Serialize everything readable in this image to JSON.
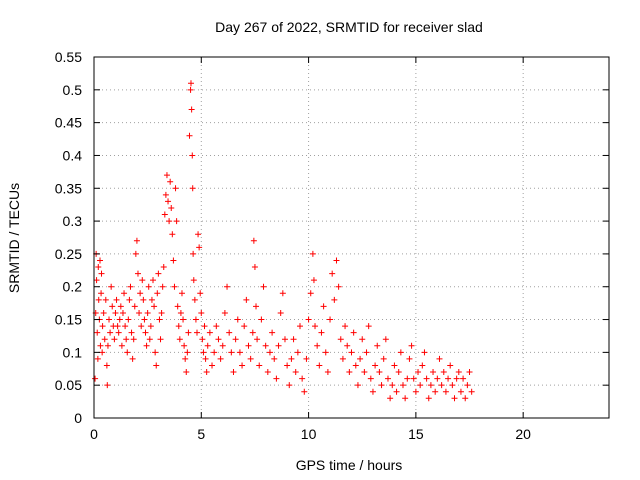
{
  "chart_data": {
    "type": "scatter",
    "title": "Day 267 of 2022, SRMTID for receiver slad",
    "xlabel": "GPS time / hours",
    "ylabel": "SRMTID / TECUs",
    "xlim": [
      0,
      24
    ],
    "ylim": [
      0,
      0.55
    ],
    "xticks": [
      0,
      5,
      10,
      15,
      20
    ],
    "yticks": [
      0,
      0.05,
      0.1,
      0.15,
      0.2,
      0.25,
      0.3,
      0.35,
      0.4,
      0.45,
      0.5,
      0.55
    ],
    "grid": true,
    "marker": "+",
    "color": "#ff0000",
    "points": [
      [
        0.05,
        0.06
      ],
      [
        0.08,
        0.16
      ],
      [
        0.1,
        0.25
      ],
      [
        0.12,
        0.21
      ],
      [
        0.15,
        0.13
      ],
      [
        0.18,
        0.09
      ],
      [
        0.2,
        0.23
      ],
      [
        0.22,
        0.18
      ],
      [
        0.25,
        0.15
      ],
      [
        0.28,
        0.24
      ],
      [
        0.3,
        0.11
      ],
      [
        0.33,
        0.19
      ],
      [
        0.35,
        0.22
      ],
      [
        0.38,
        0.1
      ],
      [
        0.4,
        0.14
      ],
      [
        0.45,
        0.16
      ],
      [
        0.5,
        0.12
      ],
      [
        0.55,
        0.18
      ],
      [
        0.6,
        0.08
      ],
      [
        0.62,
        0.05
      ],
      [
        0.65,
        0.11
      ],
      [
        0.7,
        0.15
      ],
      [
        0.75,
        0.13
      ],
      [
        0.8,
        0.2
      ],
      [
        0.85,
        0.17
      ],
      [
        0.9,
        0.14
      ],
      [
        0.95,
        0.12
      ],
      [
        1.0,
        0.16
      ],
      [
        1.05,
        0.18
      ],
      [
        1.1,
        0.14
      ],
      [
        1.15,
        0.13
      ],
      [
        1.2,
        0.15
      ],
      [
        1.25,
        0.17
      ],
      [
        1.3,
        0.11
      ],
      [
        1.35,
        0.16
      ],
      [
        1.4,
        0.19
      ],
      [
        1.45,
        0.14
      ],
      [
        1.5,
        0.12
      ],
      [
        1.55,
        0.1
      ],
      [
        1.6,
        0.15
      ],
      [
        1.65,
        0.18
      ],
      [
        1.7,
        0.2
      ],
      [
        1.75,
        0.13
      ],
      [
        1.8,
        0.09
      ],
      [
        1.85,
        0.12
      ],
      [
        1.9,
        0.17
      ],
      [
        1.95,
        0.25
      ],
      [
        2.0,
        0.27
      ],
      [
        2.05,
        0.22
      ],
      [
        2.1,
        0.16
      ],
      [
        2.15,
        0.19
      ],
      [
        2.2,
        0.14
      ],
      [
        2.25,
        0.21
      ],
      [
        2.3,
        0.18
      ],
      [
        2.35,
        0.15
      ],
      [
        2.4,
        0.13
      ],
      [
        2.45,
        0.11
      ],
      [
        2.5,
        0.16
      ],
      [
        2.55,
        0.2
      ],
      [
        2.6,
        0.12
      ],
      [
        2.65,
        0.14
      ],
      [
        2.7,
        0.18
      ],
      [
        2.75,
        0.21
      ],
      [
        2.8,
        0.17
      ],
      [
        2.85,
        0.1
      ],
      [
        2.9,
        0.08
      ],
      [
        2.95,
        0.19
      ],
      [
        3.0,
        0.22
      ],
      [
        3.05,
        0.15
      ],
      [
        3.1,
        0.12
      ],
      [
        3.15,
        0.16
      ],
      [
        3.2,
        0.2
      ],
      [
        3.25,
        0.23
      ],
      [
        3.3,
        0.31
      ],
      [
        3.35,
        0.34
      ],
      [
        3.4,
        0.37
      ],
      [
        3.45,
        0.33
      ],
      [
        3.5,
        0.3
      ],
      [
        3.55,
        0.36
      ],
      [
        3.6,
        0.32
      ],
      [
        3.65,
        0.28
      ],
      [
        3.7,
        0.24
      ],
      [
        3.75,
        0.2
      ],
      [
        3.8,
        0.35
      ],
      [
        3.85,
        0.3
      ],
      [
        3.9,
        0.17
      ],
      [
        3.95,
        0.14
      ],
      [
        4.0,
        0.12
      ],
      [
        4.05,
        0.16
      ],
      [
        4.1,
        0.19
      ],
      [
        4.15,
        0.15
      ],
      [
        4.2,
        0.11
      ],
      [
        4.25,
        0.09
      ],
      [
        4.3,
        0.07
      ],
      [
        4.35,
        0.1
      ],
      [
        4.4,
        0.13
      ],
      [
        4.45,
        0.43
      ],
      [
        4.5,
        0.5
      ],
      [
        4.52,
        0.51
      ],
      [
        4.55,
        0.47
      ],
      [
        4.58,
        0.4
      ],
      [
        4.6,
        0.35
      ],
      [
        4.62,
        0.25
      ],
      [
        4.65,
        0.21
      ],
      [
        4.7,
        0.18
      ],
      [
        4.75,
        0.15
      ],
      [
        4.8,
        0.13
      ],
      [
        4.85,
        0.28
      ],
      [
        4.9,
        0.26
      ],
      [
        4.95,
        0.19
      ],
      [
        5.0,
        0.16
      ],
      [
        5.05,
        0.12
      ],
      [
        5.1,
        0.1
      ],
      [
        5.15,
        0.14
      ],
      [
        5.2,
        0.09
      ],
      [
        5.25,
        0.07
      ],
      [
        5.3,
        0.11
      ],
      [
        5.4,
        0.13
      ],
      [
        5.5,
        0.08
      ],
      [
        5.6,
        0.1
      ],
      [
        5.7,
        0.14
      ],
      [
        5.8,
        0.12
      ],
      [
        5.9,
        0.09
      ],
      [
        6.0,
        0.11
      ],
      [
        6.1,
        0.16
      ],
      [
        6.2,
        0.2
      ],
      [
        6.3,
        0.13
      ],
      [
        6.4,
        0.1
      ],
      [
        6.5,
        0.07
      ],
      [
        6.6,
        0.12
      ],
      [
        6.7,
        0.15
      ],
      [
        6.8,
        0.1
      ],
      [
        6.9,
        0.08
      ],
      [
        7.0,
        0.14
      ],
      [
        7.1,
        0.18
      ],
      [
        7.2,
        0.11
      ],
      [
        7.3,
        0.09
      ],
      [
        7.4,
        0.13
      ],
      [
        7.45,
        0.27
      ],
      [
        7.5,
        0.23
      ],
      [
        7.55,
        0.17
      ],
      [
        7.6,
        0.12
      ],
      [
        7.7,
        0.08
      ],
      [
        7.8,
        0.15
      ],
      [
        7.9,
        0.2
      ],
      [
        8.0,
        0.11
      ],
      [
        8.1,
        0.07
      ],
      [
        8.2,
        0.1
      ],
      [
        8.3,
        0.13
      ],
      [
        8.4,
        0.09
      ],
      [
        8.5,
        0.06
      ],
      [
        8.6,
        0.11
      ],
      [
        8.7,
        0.16
      ],
      [
        8.8,
        0.19
      ],
      [
        8.9,
        0.12
      ],
      [
        9.0,
        0.08
      ],
      [
        9.1,
        0.05
      ],
      [
        9.2,
        0.09
      ],
      [
        9.3,
        0.12
      ],
      [
        9.4,
        0.07
      ],
      [
        9.5,
        0.1
      ],
      [
        9.6,
        0.14
      ],
      [
        9.7,
        0.06
      ],
      [
        9.8,
        0.04
      ],
      [
        9.9,
        0.09
      ],
      [
        10.0,
        0.15
      ],
      [
        10.1,
        0.19
      ],
      [
        10.2,
        0.25
      ],
      [
        10.25,
        0.21
      ],
      [
        10.3,
        0.14
      ],
      [
        10.4,
        0.11
      ],
      [
        10.5,
        0.08
      ],
      [
        10.6,
        0.13
      ],
      [
        10.7,
        0.17
      ],
      [
        10.8,
        0.1
      ],
      [
        10.9,
        0.07
      ],
      [
        11.0,
        0.15
      ],
      [
        11.1,
        0.22
      ],
      [
        11.2,
        0.18
      ],
      [
        11.3,
        0.24
      ],
      [
        11.4,
        0.2
      ],
      [
        11.5,
        0.12
      ],
      [
        11.6,
        0.09
      ],
      [
        11.7,
        0.14
      ],
      [
        11.8,
        0.11
      ],
      [
        11.9,
        0.07
      ],
      [
        12.0,
        0.1
      ],
      [
        12.1,
        0.13
      ],
      [
        12.2,
        0.08
      ],
      [
        12.3,
        0.05
      ],
      [
        12.4,
        0.09
      ],
      [
        12.5,
        0.12
      ],
      [
        12.6,
        0.07
      ],
      [
        12.7,
        0.1
      ],
      [
        12.8,
        0.14
      ],
      [
        12.9,
        0.06
      ],
      [
        13.0,
        0.04
      ],
      [
        13.1,
        0.08
      ],
      [
        13.2,
        0.11
      ],
      [
        13.3,
        0.07
      ],
      [
        13.4,
        0.05
      ],
      [
        13.5,
        0.09
      ],
      [
        13.6,
        0.12
      ],
      [
        13.7,
        0.06
      ],
      [
        13.8,
        0.03
      ],
      [
        13.9,
        0.05
      ],
      [
        14.0,
        0.08
      ],
      [
        14.1,
        0.04
      ],
      [
        14.2,
        0.07
      ],
      [
        14.3,
        0.1
      ],
      [
        14.4,
        0.05
      ],
      [
        14.5,
        0.03
      ],
      [
        14.6,
        0.06
      ],
      [
        14.7,
        0.09
      ],
      [
        14.8,
        0.11
      ],
      [
        14.9,
        0.06
      ],
      [
        15.0,
        0.04
      ],
      [
        15.1,
        0.07
      ],
      [
        15.2,
        0.05
      ],
      [
        15.3,
        0.08
      ],
      [
        15.4,
        0.1
      ],
      [
        15.5,
        0.06
      ],
      [
        15.6,
        0.03
      ],
      [
        15.7,
        0.05
      ],
      [
        15.8,
        0.07
      ],
      [
        15.9,
        0.04
      ],
      [
        16.0,
        0.06
      ],
      [
        16.1,
        0.09
      ],
      [
        16.2,
        0.05
      ],
      [
        16.3,
        0.07
      ],
      [
        16.4,
        0.04
      ],
      [
        16.5,
        0.06
      ],
      [
        16.6,
        0.08
      ],
      [
        16.7,
        0.05
      ],
      [
        16.8,
        0.03
      ],
      [
        16.9,
        0.06
      ],
      [
        17.0,
        0.07
      ],
      [
        17.1,
        0.04
      ],
      [
        17.2,
        0.06
      ],
      [
        17.3,
        0.03
      ],
      [
        17.4,
        0.05
      ],
      [
        17.5,
        0.07
      ],
      [
        17.6,
        0.04
      ]
    ]
  }
}
